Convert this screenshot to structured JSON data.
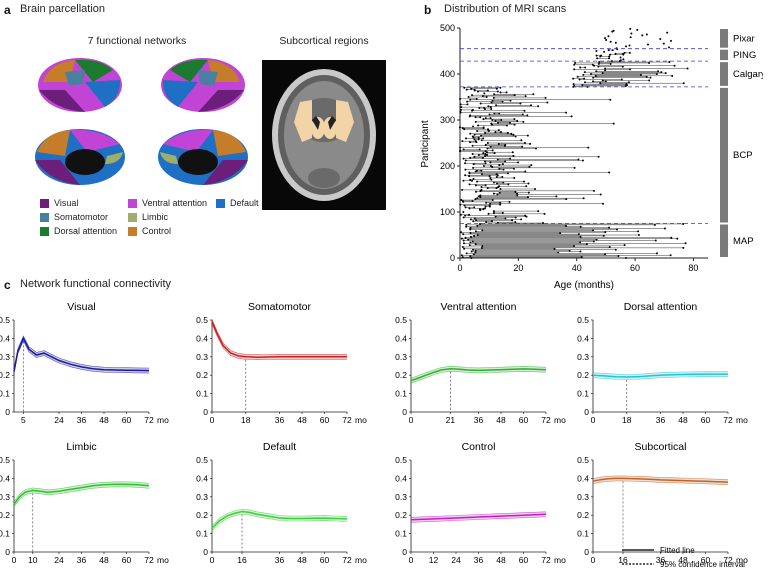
{
  "panel_a": {
    "letter": "a",
    "title": "Brain parcellation",
    "networks_title": "7 functional networks",
    "subcortical_title": "Subcortical regions",
    "legend": [
      {
        "label": "Visual",
        "color": "#6b1f7a"
      },
      {
        "label": "Ventral attention",
        "color": "#c244d6"
      },
      {
        "label": "Default",
        "color": "#1f6fc4"
      },
      {
        "label": "Somatomotor",
        "color": "#4a7fa0"
      },
      {
        "label": "Limbic",
        "color": "#9fae6a"
      },
      {
        "label": "Dorsal attention",
        "color": "#1c7a2e"
      },
      {
        "label": "Control",
        "color": "#c57d2a"
      }
    ]
  },
  "panel_b": {
    "letter": "b",
    "title": "Distribution of MRI scans",
    "xlabel": "Age (months)",
    "ylabel": "Participant",
    "xticks": [
      "0",
      "20",
      "40",
      "60",
      "80"
    ],
    "yticks": [
      "0",
      "100",
      "200",
      "300",
      "400",
      "500"
    ],
    "cohorts": [
      {
        "name": "Pixar",
        "from": 455,
        "to": 500
      },
      {
        "name": "PING",
        "from": 428,
        "to": 455
      },
      {
        "name": "Calgary",
        "from": 372,
        "to": 428
      },
      {
        "name": "BCP",
        "from": 75,
        "to": 372
      },
      {
        "name": "MAP",
        "from": 0,
        "to": 75
      }
    ]
  },
  "panel_c": {
    "letter": "c",
    "title": "Network functional connectivity",
    "x_unit": "mo",
    "legend_fitted": "Fitted line",
    "legend_ci": "95% confidence interval"
  },
  "chart_data": [
    {
      "type": "line",
      "title": "Visual",
      "color": "#1a1aa0",
      "xticks": [
        5,
        24,
        36,
        48,
        60,
        72
      ],
      "ylim": [
        0,
        0.5
      ],
      "peak": 5,
      "x": [
        0,
        2,
        5,
        8,
        12,
        16,
        20,
        24,
        30,
        36,
        42,
        48,
        54,
        60,
        66,
        72
      ],
      "y": [
        0.22,
        0.33,
        0.4,
        0.34,
        0.31,
        0.32,
        0.3,
        0.28,
        0.26,
        0.245,
        0.235,
        0.23,
        0.228,
        0.227,
        0.226,
        0.225
      ]
    },
    {
      "type": "line",
      "title": "Somatomotor",
      "color": "#cc1f1f",
      "xticks": [
        0,
        18,
        36,
        48,
        60,
        72
      ],
      "ylim": [
        0,
        0.5
      ],
      "peak": 18,
      "x": [
        0,
        3,
        6,
        10,
        14,
        18,
        24,
        30,
        36,
        42,
        48,
        54,
        60,
        66,
        72
      ],
      "y": [
        0.49,
        0.42,
        0.36,
        0.32,
        0.305,
        0.3,
        0.298,
        0.299,
        0.3,
        0.3,
        0.3,
        0.3,
        0.3,
        0.3,
        0.3
      ]
    },
    {
      "type": "line",
      "title": "Ventral attention",
      "color": "#2fae2f",
      "xticks": [
        0,
        21,
        36,
        48,
        60,
        72
      ],
      "ylim": [
        0,
        0.5
      ],
      "peak": 21,
      "x": [
        0,
        4,
        8,
        12,
        16,
        21,
        26,
        30,
        36,
        42,
        48,
        54,
        60,
        66,
        72
      ],
      "y": [
        0.17,
        0.185,
        0.2,
        0.215,
        0.228,
        0.235,
        0.232,
        0.228,
        0.226,
        0.228,
        0.23,
        0.232,
        0.234,
        0.232,
        0.23
      ]
    },
    {
      "type": "line",
      "title": "Dorsal attention",
      "color": "#20c4d6",
      "xticks": [
        0,
        18,
        36,
        48,
        60,
        72
      ],
      "ylim": [
        0,
        0.5
      ],
      "peak": 18,
      "x": [
        0,
        6,
        12,
        18,
        24,
        30,
        36,
        42,
        48,
        54,
        60,
        66,
        72
      ],
      "y": [
        0.2,
        0.196,
        0.192,
        0.19,
        0.192,
        0.196,
        0.2,
        0.202,
        0.204,
        0.205,
        0.206,
        0.206,
        0.206
      ]
    },
    {
      "type": "line",
      "title": "Limbic",
      "color": "#2fbf2f",
      "xticks": [
        0,
        10,
        24,
        36,
        48,
        60,
        72
      ],
      "ylim": [
        0,
        0.5
      ],
      "peak": 10,
      "x": [
        0,
        3,
        6,
        10,
        14,
        18,
        24,
        30,
        36,
        42,
        48,
        54,
        60,
        66,
        72
      ],
      "y": [
        0.26,
        0.3,
        0.325,
        0.335,
        0.33,
        0.325,
        0.33,
        0.34,
        0.35,
        0.36,
        0.365,
        0.368,
        0.368,
        0.365,
        0.36
      ]
    },
    {
      "type": "line",
      "title": "Default",
      "color": "#3ccf3c",
      "xticks": [
        0,
        16,
        36,
        48,
        60,
        72
      ],
      "ylim": [
        0,
        0.5
      ],
      "peak": 16,
      "x": [
        0,
        4,
        8,
        12,
        16,
        20,
        24,
        30,
        36,
        42,
        48,
        54,
        60,
        66,
        72
      ],
      "y": [
        0.13,
        0.17,
        0.195,
        0.21,
        0.22,
        0.215,
        0.205,
        0.195,
        0.185,
        0.182,
        0.182,
        0.183,
        0.184,
        0.182,
        0.18
      ]
    },
    {
      "type": "line",
      "title": "Control",
      "color": "#c21fc2",
      "xticks": [
        0,
        12,
        24,
        36,
        48,
        60,
        72
      ],
      "ylim": [
        0,
        0.5
      ],
      "x": [
        0,
        12,
        24,
        36,
        48,
        60,
        72
      ],
      "y": [
        0.175,
        0.18,
        0.185,
        0.19,
        0.195,
        0.2,
        0.205
      ]
    },
    {
      "type": "line",
      "title": "Subcortical",
      "color": "#c0622a",
      "xticks": [
        0,
        16,
        36,
        48,
        60,
        72
      ],
      "ylim": [
        0,
        0.5
      ],
      "peak": 16,
      "x": [
        0,
        4,
        8,
        12,
        16,
        24,
        30,
        36,
        42,
        48,
        54,
        60,
        66,
        72
      ],
      "y": [
        0.385,
        0.393,
        0.398,
        0.4,
        0.4,
        0.398,
        0.395,
        0.392,
        0.39,
        0.388,
        0.386,
        0.384,
        0.382,
        0.38
      ]
    }
  ]
}
